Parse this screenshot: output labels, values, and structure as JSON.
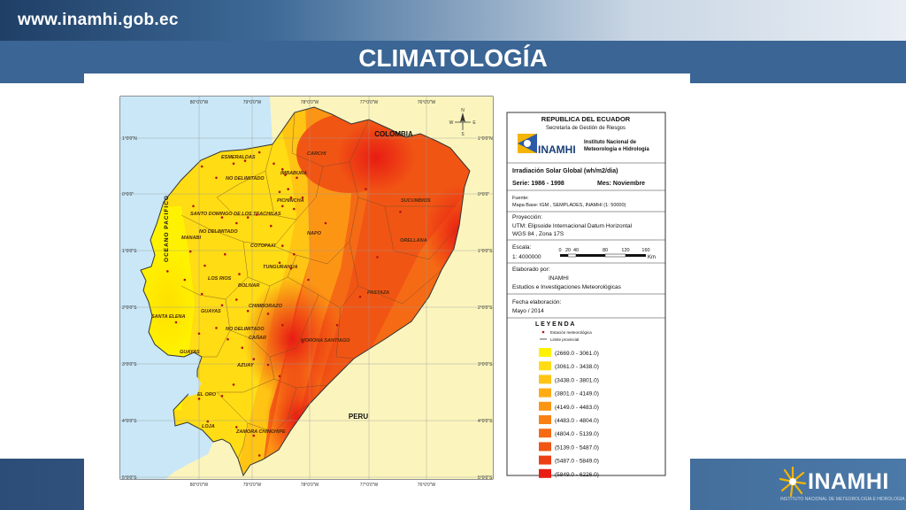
{
  "header": {
    "site_url": "www.inamhi.gob.ec",
    "title": "CLIMATOLOGÍA"
  },
  "footer": {
    "logo_text": "INAMHI",
    "logo_subtitle": "INSTITUTO NACIONAL DE METEOROLOGÍA E HIDROLOGÍA"
  },
  "map": {
    "countries": {
      "north": "COLOMBIA",
      "south": "PERU"
    },
    "ocean": "OCEANO PACIFICO",
    "compass": {
      "north": "N",
      "south": "S",
      "east": "E",
      "west": "W"
    },
    "lon_ticks": [
      "80°0'0\"W",
      "79°0'0\"W",
      "78°0'0\"W",
      "77°0'0\"W",
      "76°0'0\"W"
    ],
    "lat_ticks": [
      "1°0'0\"N",
      "0°0'0\"",
      "1°0'0\"S",
      "2°0'0\"S",
      "3°0'0\"S",
      "4°0'0\"S",
      "5°0'0\"S"
    ],
    "provinces": [
      "ESMERALDAS",
      "CARCHI",
      "IMBABURA",
      "NO DELIMITADO",
      "PICHINCHA",
      "SUCUMBIOS",
      "SANTO DOMINGO DE LOS TSACHILAS",
      "NAPO",
      "ORELLANA",
      "MANABI",
      "NO DELIMITADO",
      "COTOPAXI",
      "TUNGURAHUA",
      "LOS RIOS",
      "BOLIVAR",
      "PASTAZA",
      "CHIMBORAZO",
      "SANTA ELENA",
      "GUAYAS",
      "NO DELIMITADO",
      "CAÑAR",
      "MORONA SANTIAGO",
      "GUAYAS",
      "AZUAY",
      "EL ORO",
      "LOJA",
      "ZAMORA CHINCHIPE"
    ],
    "stations": [
      [
        -79.95,
        0.5
      ],
      [
        -79.7,
        0.3
      ],
      [
        -79.4,
        0.55
      ],
      [
        -79.2,
        0.6
      ],
      [
        -78.95,
        0.75
      ],
      [
        -78.7,
        0.55
      ],
      [
        -78.55,
        0.45
      ],
      [
        -78.5,
        0.35
      ],
      [
        -78.3,
        0.3
      ],
      [
        -78.45,
        0.1
      ],
      [
        -78.6,
        0.05
      ],
      [
        -78.4,
        -0.05
      ],
      [
        -78.2,
        -0.05
      ],
      [
        -78.55,
        -0.2
      ],
      [
        -78.35,
        -0.25
      ],
      [
        -79.6,
        -0.4
      ],
      [
        -79.35,
        -0.5
      ],
      [
        -79.15,
        -0.4
      ],
      [
        -79.0,
        -0.35
      ],
      [
        -78.75,
        -0.55
      ],
      [
        -78.55,
        -0.9
      ],
      [
        -78.35,
        -1.05
      ],
      [
        -78.6,
        -1.2
      ],
      [
        -78.4,
        -1.3
      ],
      [
        -80.15,
        -1.0
      ],
      [
        -79.9,
        -1.25
      ],
      [
        -79.55,
        -1.05
      ],
      [
        -79.3,
        -1.4
      ],
      [
        -80.25,
        -1.5
      ],
      [
        -79.95,
        -1.75
      ],
      [
        -79.6,
        -1.95
      ],
      [
        -79.35,
        -1.85
      ],
      [
        -79.15,
        -2.05
      ],
      [
        -78.8,
        -2.1
      ],
      [
        -78.55,
        -2.3
      ],
      [
        -80.4,
        -2.25
      ],
      [
        -80.0,
        -2.45
      ],
      [
        -79.7,
        -2.35
      ],
      [
        -79.5,
        -2.55
      ],
      [
        -79.25,
        -2.7
      ],
      [
        -79.05,
        -2.9
      ],
      [
        -78.8,
        -3.0
      ],
      [
        -79.4,
        -3.35
      ],
      [
        -79.6,
        -3.55
      ],
      [
        -80.0,
        -3.6
      ],
      [
        -79.85,
        -4.0
      ],
      [
        -79.35,
        -4.1
      ],
      [
        -79.05,
        -4.25
      ],
      [
        -78.95,
        -4.6
      ],
      [
        -78.6,
        -3.2
      ],
      [
        -78.2,
        -2.6
      ],
      [
        -77.6,
        -2.3
      ],
      [
        -77.2,
        -1.8
      ],
      [
        -76.9,
        -1.1
      ],
      [
        -77.8,
        -0.5
      ],
      [
        -77.1,
        0.1
      ],
      [
        -76.5,
        -0.3
      ],
      [
        -78.1,
        -1.5
      ],
      [
        -80.55,
        -1.35
      ],
      [
        -80.1,
        -0.2
      ]
    ],
    "panel": {
      "republic": "REPUBLICA DEL ECUADOR",
      "secretaria": "Secretaría de Gestión de Riesgos",
      "inamhi": "INAMHI",
      "institute": [
        "Instituto Nacional de",
        "Meteorología e Hidrología"
      ],
      "variable": "Irradiación Solar Global (wh/m2/dia)",
      "series_label": "Serie: 1986 - 1998",
      "month_label": "Mes: Noviembre",
      "source_title": "Fuente:",
      "source": "Mapa Base: IGM , SEMPLADES, INAMHI (1: 50000)",
      "projection": [
        "Proyección:",
        "UTM: Elipsoide Internacional Datum Horizontal",
        "WGS 84 , Zona 17S"
      ],
      "scale_title": "Escala:",
      "scale_value": "1: 4000000",
      "scale_ticks": [
        "0",
        "20",
        "40",
        "80",
        "120",
        "160"
      ],
      "scale_unit": "Km",
      "elaborated": [
        "Elaborado por:",
        "INAMHI",
        "Estudios e Investigaciones Meteorológicas"
      ],
      "date": [
        "Fecha elaboración:",
        "Mayo / 2014"
      ],
      "legend_title": "L E Y E N D A",
      "legend_station": "Estación meteorológica",
      "legend_boundary": "Limite provincial",
      "legend_classes": [
        {
          "label": "(2669.0 - 3061.0)",
          "color": "#fff200"
        },
        {
          "label": "(3061.0 - 3438.0)",
          "color": "#ffdc14"
        },
        {
          "label": "(3438.0 - 3801.0)",
          "color": "#ffc414"
        },
        {
          "label": "(3801.0 - 4149.0)",
          "color": "#ffac14"
        },
        {
          "label": "(4149.0 - 4483.0)",
          "color": "#fd9514"
        },
        {
          "label": "(4483.0 - 4804.0)",
          "color": "#f98014"
        },
        {
          "label": "(4804.0 - 5139.0)",
          "color": "#f56a14"
        },
        {
          "label": "(5139.0 - 5487.0)",
          "color": "#f15514"
        },
        {
          "label": "(5487.0 - 5849.0)",
          "color": "#ec3f14"
        },
        {
          "label": "(5849.0 - 6226.0)",
          "color": "#e81c14"
        }
      ]
    }
  }
}
